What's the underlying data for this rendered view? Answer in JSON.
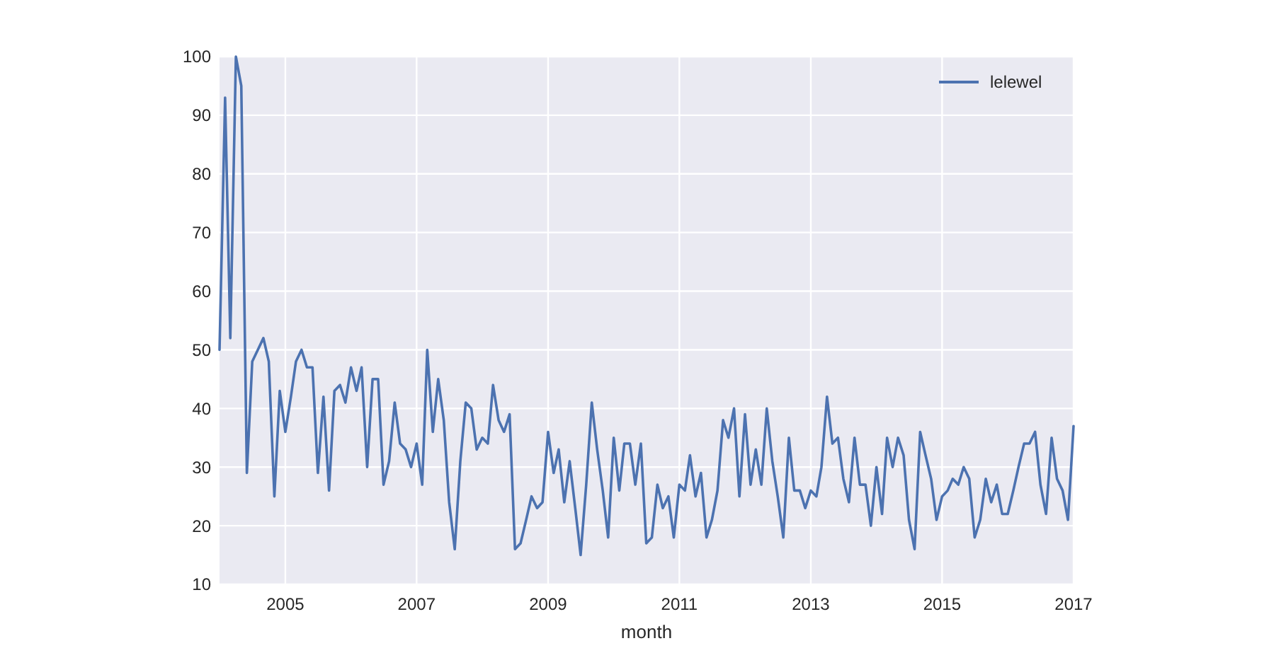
{
  "chart_data": {
    "type": "line",
    "xlabel": "month",
    "x": [
      "2004-01",
      "2004-02",
      "2004-03",
      "2004-04",
      "2004-05",
      "2004-06",
      "2004-07",
      "2004-08",
      "2004-09",
      "2004-10",
      "2004-11",
      "2004-12",
      "2005-01",
      "2005-02",
      "2005-03",
      "2005-04",
      "2005-05",
      "2005-06",
      "2005-07",
      "2005-08",
      "2005-09",
      "2005-10",
      "2005-11",
      "2005-12",
      "2006-01",
      "2006-02",
      "2006-03",
      "2006-04",
      "2006-05",
      "2006-06",
      "2006-07",
      "2006-08",
      "2006-09",
      "2006-10",
      "2006-11",
      "2006-12",
      "2007-01",
      "2007-02",
      "2007-03",
      "2007-04",
      "2007-05",
      "2007-06",
      "2007-07",
      "2007-08",
      "2007-09",
      "2007-10",
      "2007-11",
      "2007-12",
      "2008-01",
      "2008-02",
      "2008-03",
      "2008-04",
      "2008-05",
      "2008-06",
      "2008-07",
      "2008-08",
      "2008-09",
      "2008-10",
      "2008-11",
      "2008-12",
      "2009-01",
      "2009-02",
      "2009-03",
      "2009-04",
      "2009-05",
      "2009-06",
      "2009-07",
      "2009-08",
      "2009-09",
      "2009-10",
      "2009-11",
      "2009-12",
      "2010-01",
      "2010-02",
      "2010-03",
      "2010-04",
      "2010-05",
      "2010-06",
      "2010-07",
      "2010-08",
      "2010-09",
      "2010-10",
      "2010-11",
      "2010-12",
      "2011-01",
      "2011-02",
      "2011-03",
      "2011-04",
      "2011-05",
      "2011-06",
      "2011-07",
      "2011-08",
      "2011-09",
      "2011-10",
      "2011-11",
      "2011-12",
      "2012-01",
      "2012-02",
      "2012-03",
      "2012-04",
      "2012-05",
      "2012-06",
      "2012-07",
      "2012-08",
      "2012-09",
      "2012-10",
      "2012-11",
      "2012-12",
      "2013-01",
      "2013-02",
      "2013-03",
      "2013-04",
      "2013-05",
      "2013-06",
      "2013-07",
      "2013-08",
      "2013-09",
      "2013-10",
      "2013-11",
      "2013-12",
      "2014-01",
      "2014-02",
      "2014-03",
      "2014-04",
      "2014-05",
      "2014-06",
      "2014-07",
      "2014-08",
      "2014-09",
      "2014-10",
      "2014-11",
      "2014-12",
      "2015-01",
      "2015-02",
      "2015-03",
      "2015-04",
      "2015-05",
      "2015-06",
      "2015-07",
      "2015-08",
      "2015-09",
      "2015-10",
      "2015-11",
      "2015-12",
      "2016-01",
      "2016-02",
      "2016-03",
      "2016-04",
      "2016-05",
      "2016-06",
      "2016-07",
      "2016-08",
      "2016-09",
      "2016-10",
      "2016-11",
      "2016-12",
      "2017-01"
    ],
    "series": [
      {
        "name": "lelewel",
        "color": "#4c72b0",
        "values": [
          50,
          93,
          52,
          100,
          95,
          29,
          48,
          50,
          52,
          48,
          25,
          43,
          36,
          42,
          48,
          50,
          47,
          47,
          29,
          42,
          26,
          43,
          44,
          41,
          47,
          43,
          47,
          30,
          45,
          45,
          27,
          31,
          41,
          34,
          33,
          30,
          34,
          27,
          50,
          36,
          45,
          38,
          24,
          16,
          31,
          41,
          40,
          33,
          35,
          34,
          44,
          38,
          36,
          39,
          16,
          17,
          21,
          25,
          23,
          24,
          36,
          29,
          33,
          24,
          31,
          23,
          15,
          27,
          41,
          33,
          26,
          18,
          35,
          26,
          34,
          34,
          27,
          34,
          17,
          18,
          27,
          23,
          25,
          18,
          27,
          26,
          32,
          25,
          29,
          18,
          21,
          26,
          38,
          35,
          40,
          25,
          39,
          27,
          33,
          27,
          40,
          31,
          25,
          18,
          35,
          26,
          26,
          23,
          26,
          25,
          30,
          42,
          34,
          35,
          28,
          24,
          35,
          27,
          27,
          20,
          30,
          22,
          35,
          30,
          35,
          32,
          21,
          16,
          36,
          32,
          28,
          21,
          25,
          26,
          28,
          27,
          30,
          28,
          18,
          21,
          28,
          24,
          27,
          22,
          22,
          26,
          30,
          34,
          34,
          36,
          27,
          22,
          35,
          28,
          26,
          21,
          37
        ]
      }
    ],
    "xlim": [
      "2004-01",
      "2017-01"
    ],
    "xticks": [
      {
        "value": "2005-01",
        "label": "2005"
      },
      {
        "value": "2007-01",
        "label": "2007"
      },
      {
        "value": "2009-01",
        "label": "2009"
      },
      {
        "value": "2011-01",
        "label": "2011"
      },
      {
        "value": "2013-01",
        "label": "2013"
      },
      {
        "value": "2015-01",
        "label": "2015"
      },
      {
        "value": "2017-01",
        "label": "2017"
      }
    ],
    "ylim": [
      10,
      100
    ],
    "yticks": [
      10,
      20,
      30,
      40,
      50,
      60,
      70,
      80,
      90,
      100
    ],
    "grid": true,
    "legend": "top right",
    "line_style": "solid"
  }
}
